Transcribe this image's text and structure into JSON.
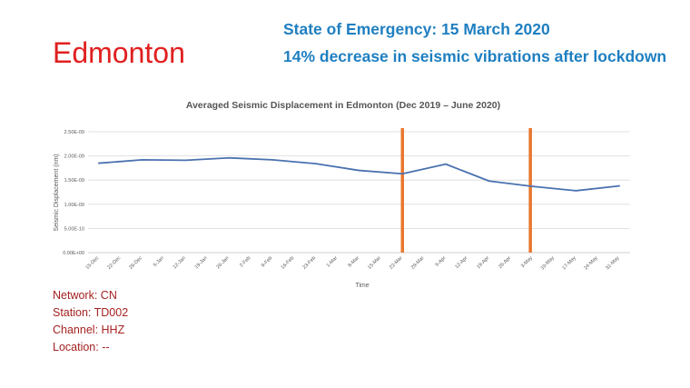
{
  "city": "Edmonton",
  "headline": {
    "line1": "State of Emergency: 15 March 2020",
    "line2": "14% decrease in seismic vibrations after lockdown"
  },
  "station_info": {
    "network": "Network: CN",
    "station": "Station: TD002",
    "channel": "Channel: HHZ",
    "location": "Location: --"
  },
  "colors": {
    "city": "#e02020",
    "headline": "#1f7fc1",
    "info": "#a52222",
    "series": "#4a72b0",
    "marker": "#e8772e",
    "grid": "#d9d9d9"
  },
  "chart_data": {
    "type": "line",
    "title": "Averaged Seismic Displacement in Edmonton (Dec 2019 – June 2020)",
    "xlabel": "Time",
    "ylabel": "Seismic Displacement (nm)",
    "ylim": [
      0,
      2.5e-09
    ],
    "yticks": [
      0,
      5e-10,
      1e-09,
      1.5e-09,
      2e-09,
      2.5e-09
    ],
    "ytick_labels": [
      "0.00E+00",
      "5.00E-10",
      "1.00E-09",
      "1.50E-09",
      "2.00E-09",
      "2.50E-09"
    ],
    "x_labels": [
      "15-Dec",
      "22-Dec",
      "29-Dec",
      "5-Jan",
      "12-Jan",
      "19-Jan",
      "26-Jan",
      "2-Feb",
      "9-Feb",
      "16-Feb",
      "23-Feb",
      "1-Mar",
      "8-Mar",
      "15-Mar",
      "22-Mar",
      "29-Mar",
      "5-Apr",
      "12-Apr",
      "19-Apr",
      "26-Apr",
      "3-May",
      "10-May",
      "17-May",
      "24-May",
      "31-May"
    ],
    "grid": true,
    "series": [
      {
        "name": "Seismic Displacement",
        "points": [
          {
            "x": "15-Dec",
            "y": 1.85e-09
          },
          {
            "x": "29-Dec",
            "y": 1.92e-09
          },
          {
            "x": "12-Jan",
            "y": 1.91e-09
          },
          {
            "x": "26-Jan",
            "y": 1.96e-09
          },
          {
            "x": "9-Feb",
            "y": 1.92e-09
          },
          {
            "x": "23-Feb",
            "y": 1.84e-09
          },
          {
            "x": "8-Mar",
            "y": 1.7e-09
          },
          {
            "x": "22-Mar",
            "y": 1.63e-09
          },
          {
            "x": "5-Apr",
            "y": 1.83e-09
          },
          {
            "x": "19-Apr",
            "y": 1.48e-09
          },
          {
            "x": "3-May",
            "y": 1.37e-09
          },
          {
            "x": "17-May",
            "y": 1.28e-09
          },
          {
            "x": "31-May",
            "y": 1.38e-09
          }
        ]
      }
    ],
    "markers": [
      {
        "name": "lockdown-start",
        "x": 14.0
      },
      {
        "name": "marker-may",
        "x": 19.9
      }
    ]
  }
}
